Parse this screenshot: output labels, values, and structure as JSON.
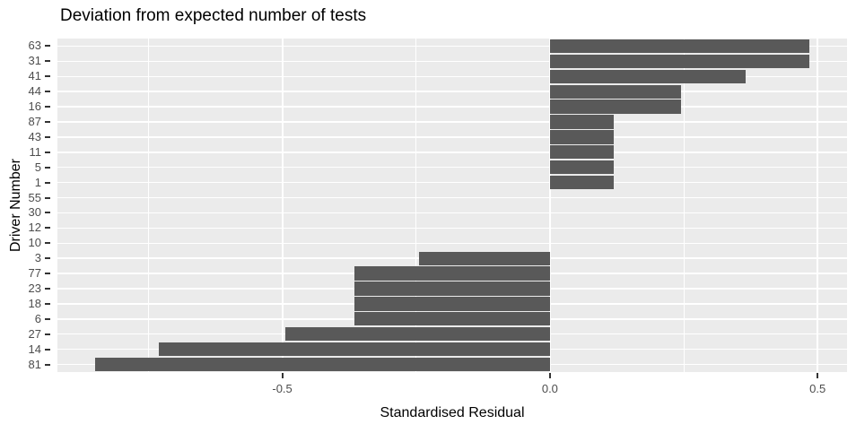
{
  "title": "Deviation from expected number of tests",
  "chart_data": {
    "type": "bar",
    "orientation": "horizontal",
    "title": "Deviation from expected number of tests",
    "xlabel": "Standardised Residual",
    "ylabel": "Driver Number",
    "categories": [
      "63",
      "31",
      "41",
      "44",
      "16",
      "87",
      "43",
      "11",
      "5",
      "1",
      "55",
      "30",
      "12",
      "10",
      "3",
      "77",
      "23",
      "18",
      "6",
      "27",
      "14",
      "81"
    ],
    "values": [
      0.485,
      0.485,
      0.365,
      0.245,
      0.245,
      0.12,
      0.12,
      0.12,
      0.12,
      0.12,
      0,
      0,
      0,
      0,
      -0.245,
      -0.365,
      -0.365,
      -0.365,
      -0.365,
      -0.495,
      -0.73,
      -0.85
    ],
    "xlim": [
      -0.92,
      0.555
    ],
    "x_major_ticks": [
      -0.5,
      0.0,
      0.5
    ],
    "x_tick_labels": [
      "-0.5",
      "0.0",
      "0.5"
    ],
    "x_minor_ticks": [
      -0.75,
      -0.25,
      0.25
    ],
    "grid": true,
    "legend": false,
    "bar_color": "#595959",
    "panel_bg": "#EBEBEB",
    "grid_color": "#FFFFFF",
    "axis_text_color": "#4D4D4D",
    "title_color": "#000000"
  }
}
